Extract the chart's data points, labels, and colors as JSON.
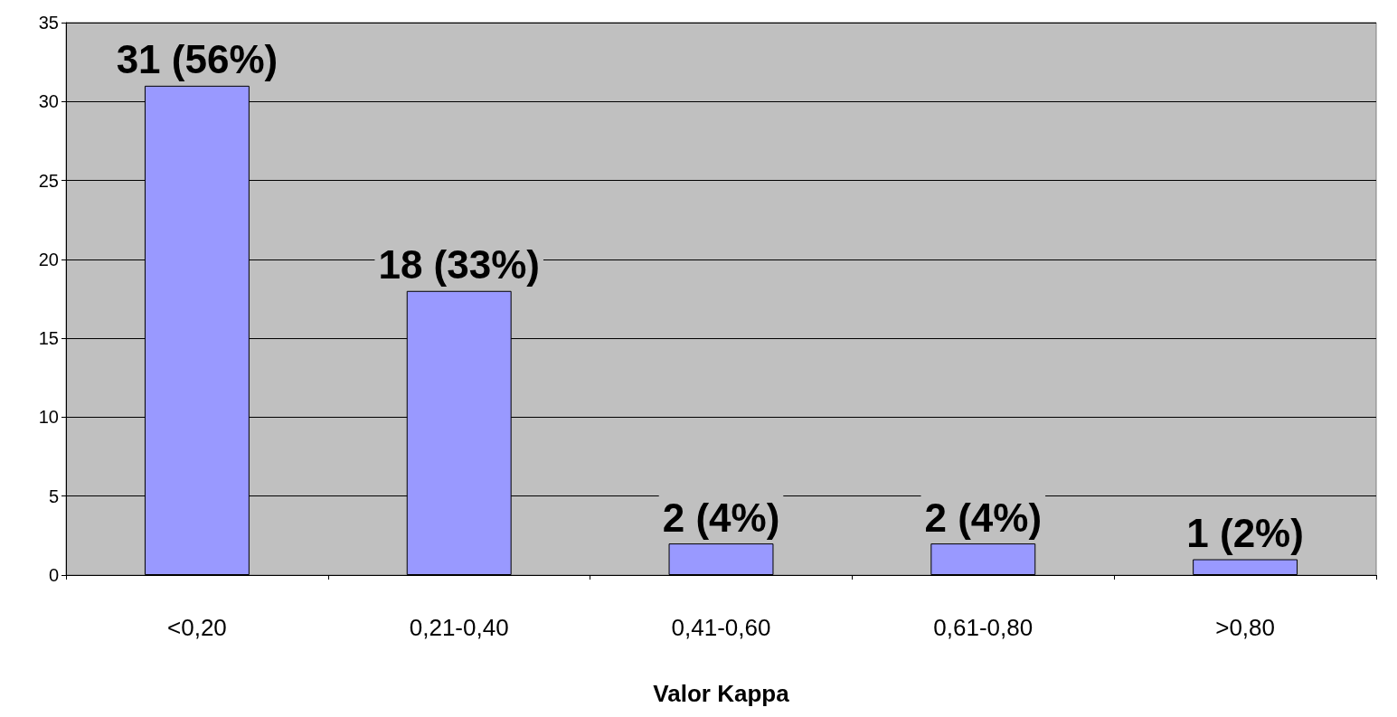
{
  "chart_data": {
    "type": "bar",
    "xlabel": "Valor Kappa",
    "categories": [
      "<0,20",
      "0,21-0,40",
      "0,41-0,60",
      "0,61-0,80",
      ">0,80"
    ],
    "values": [
      31,
      18,
      2,
      2,
      1
    ],
    "value_labels": [
      "31 (56%)",
      "18 (33%)",
      "2 (4%)",
      "2 (4%)",
      "1 (2%)"
    ],
    "color": "#9999ff",
    "ylim": [
      0,
      35
    ],
    "yticks": [
      0,
      5,
      10,
      15,
      20,
      25,
      30,
      35
    ],
    "grid": "y"
  }
}
